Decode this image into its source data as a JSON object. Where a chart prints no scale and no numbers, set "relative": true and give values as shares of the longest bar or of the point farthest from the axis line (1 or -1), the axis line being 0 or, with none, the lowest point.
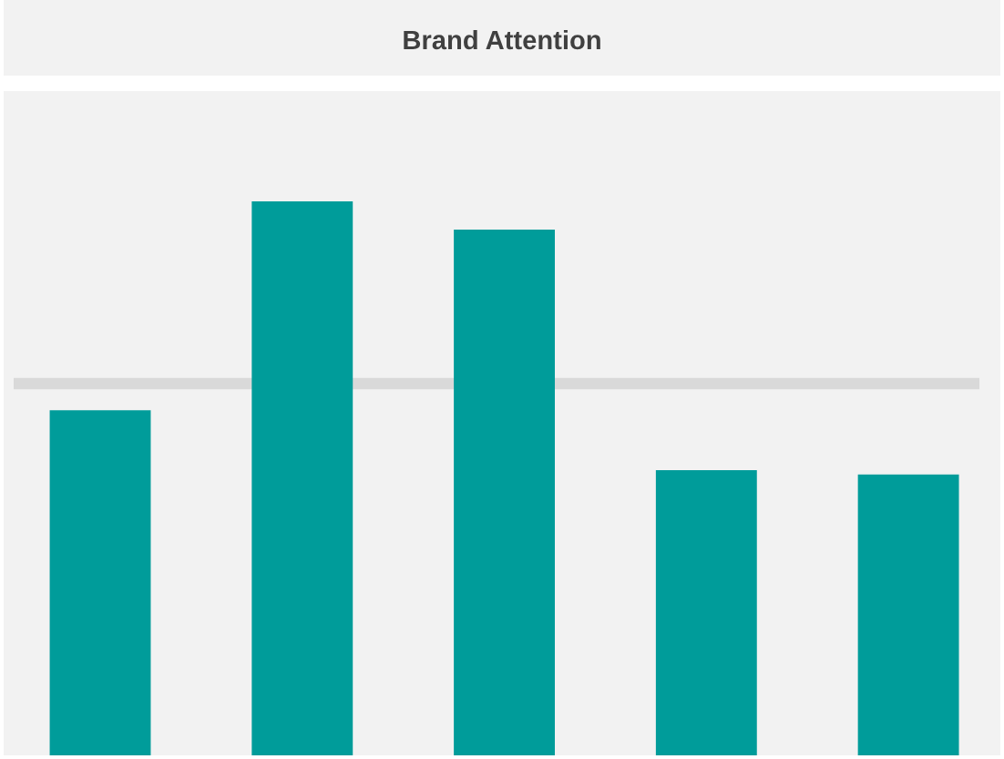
{
  "chart_data": {
    "type": "bar",
    "title": "Brand Attention",
    "relative": true,
    "categories": [
      null,
      null,
      null,
      null,
      null
    ],
    "values": [
      0.623,
      1,
      0.949,
      0.515,
      0.507
    ],
    "color": "#009c9a",
    "ref_lines": [
      {
        "axis": "y",
        "value": 0.671,
        "color": "#d9d9d9",
        "line_style": "solid"
      }
    ],
    "grid": false,
    "legend": false
  }
}
